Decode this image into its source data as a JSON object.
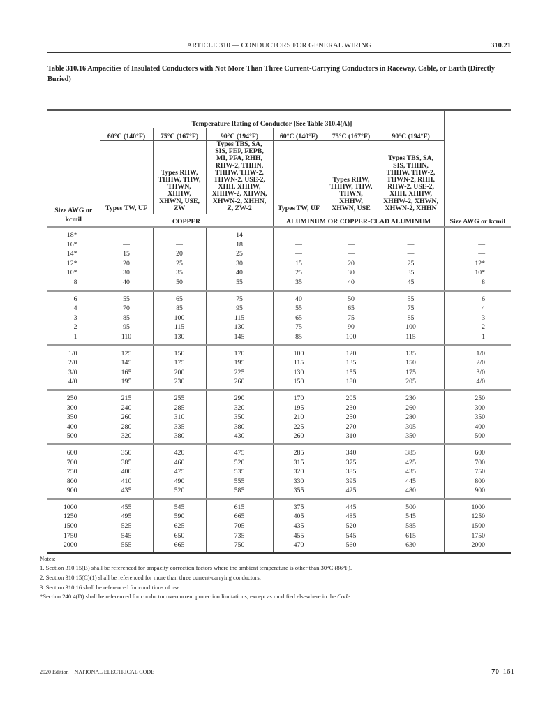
{
  "header": {
    "article": "ARTICLE 310 — CONDUCTORS FOR GENERAL WIRING",
    "section": "310.21"
  },
  "table_title": "Table 310.16  Ampacities of Insulated Conductors with Not More Than Three Current-Carrying Conductors in Raceway, Cable, or Earth (Directly Buried)",
  "table": {
    "temp_rating_header": "Temperature Rating of Conductor [See Table 310.4(A)]",
    "temps": [
      "60°C (140°F)",
      "75°C (167°F)",
      "90°C (194°F)",
      "60°C (140°F)",
      "75°C (167°F)",
      "90°C (194°F)"
    ],
    "types": [
      "Types TW, UF",
      "Types RHW,\nTHHW, THW,\nTHWN,\nXHHW,\nXHWN, USE,\nZW",
      "Types TBS, SA,\nSIS, FEP, FEPB,\nMI, PFA, RHH,\nRHW-2, THHN,\nTHHW, THW-2,\nTHWN-2, USE-2,\nXHH, XHHW,\nXHHW-2, XHWN,\nXHWN-2, XHHN,\nZ, ZW-2",
      "Types TW, UF",
      "Types RHW,\nTHHW, THW,\nTHWN,\nXHHW,\nXHWN, USE",
      "Types TBS, SA,\nSIS, THHN,\nTHHW, THW-2,\nTHWN-2, RHH,\nRHW-2, USE-2,\nXHH, XHHW,\nXHHW-2, XHWN,\nXHWN-2, XHHN"
    ],
    "size_header_left": "Size AWG or kcmil",
    "copper": "COPPER",
    "aluminum": "ALUMINUM OR COPPER-CLAD ALUMINUM",
    "size_header_right": "Size AWG or kcmil",
    "groups": [
      [
        {
          "size": "18*",
          "values": [
            "—",
            "—",
            "14",
            "—",
            "—",
            "—"
          ],
          "size_right": "—"
        },
        {
          "size": "16*",
          "values": [
            "—",
            "—",
            "18",
            "—",
            "—",
            "—"
          ],
          "size_right": "—"
        },
        {
          "size": "14*",
          "values": [
            "15",
            "20",
            "25",
            "—",
            "—",
            "—"
          ],
          "size_right": "—"
        },
        {
          "size": "12*",
          "values": [
            "20",
            "25",
            "30",
            "15",
            "20",
            "25"
          ],
          "size_right": "12*"
        },
        {
          "size": "10*",
          "values": [
            "30",
            "35",
            "40",
            "25",
            "30",
            "35"
          ],
          "size_right": "10*"
        },
        {
          "size": "8",
          "values": [
            "40",
            "50",
            "55",
            "35",
            "40",
            "45"
          ],
          "size_right": "8"
        }
      ],
      [
        {
          "size": "6",
          "values": [
            "55",
            "65",
            "75",
            "40",
            "50",
            "55"
          ],
          "size_right": "6"
        },
        {
          "size": "4",
          "values": [
            "70",
            "85",
            "95",
            "55",
            "65",
            "75"
          ],
          "size_right": "4"
        },
        {
          "size": "3",
          "values": [
            "85",
            "100",
            "115",
            "65",
            "75",
            "85"
          ],
          "size_right": "3"
        },
        {
          "size": "2",
          "values": [
            "95",
            "115",
            "130",
            "75",
            "90",
            "100"
          ],
          "size_right": "2"
        },
        {
          "size": "1",
          "values": [
            "110",
            "130",
            "145",
            "85",
            "100",
            "115"
          ],
          "size_right": "1"
        }
      ],
      [
        {
          "size": "1/0",
          "values": [
            "125",
            "150",
            "170",
            "100",
            "120",
            "135"
          ],
          "size_right": "1/0"
        },
        {
          "size": "2/0",
          "values": [
            "145",
            "175",
            "195",
            "115",
            "135",
            "150"
          ],
          "size_right": "2/0"
        },
        {
          "size": "3/0",
          "values": [
            "165",
            "200",
            "225",
            "130",
            "155",
            "175"
          ],
          "size_right": "3/0"
        },
        {
          "size": "4/0",
          "values": [
            "195",
            "230",
            "260",
            "150",
            "180",
            "205"
          ],
          "size_right": "4/0"
        }
      ],
      [
        {
          "size": "250",
          "values": [
            "215",
            "255",
            "290",
            "170",
            "205",
            "230"
          ],
          "size_right": "250"
        },
        {
          "size": "300",
          "values": [
            "240",
            "285",
            "320",
            "195",
            "230",
            "260"
          ],
          "size_right": "300"
        },
        {
          "size": "350",
          "values": [
            "260",
            "310",
            "350",
            "210",
            "250",
            "280"
          ],
          "size_right": "350"
        },
        {
          "size": "400",
          "values": [
            "280",
            "335",
            "380",
            "225",
            "270",
            "305"
          ],
          "size_right": "400"
        },
        {
          "size": "500",
          "values": [
            "320",
            "380",
            "430",
            "260",
            "310",
            "350"
          ],
          "size_right": "500"
        }
      ],
      [
        {
          "size": "600",
          "values": [
            "350",
            "420",
            "475",
            "285",
            "340",
            "385"
          ],
          "size_right": "600"
        },
        {
          "size": "700",
          "values": [
            "385",
            "460",
            "520",
            "315",
            "375",
            "425"
          ],
          "size_right": "700"
        },
        {
          "size": "750",
          "values": [
            "400",
            "475",
            "535",
            "320",
            "385",
            "435"
          ],
          "size_right": "750"
        },
        {
          "size": "800",
          "values": [
            "410",
            "490",
            "555",
            "330",
            "395",
            "445"
          ],
          "size_right": "800"
        },
        {
          "size": "900",
          "values": [
            "435",
            "520",
            "585",
            "355",
            "425",
            "480"
          ],
          "size_right": "900"
        }
      ],
      [
        {
          "size": "1000",
          "values": [
            "455",
            "545",
            "615",
            "375",
            "445",
            "500"
          ],
          "size_right": "1000"
        },
        {
          "size": "1250",
          "values": [
            "495",
            "590",
            "665",
            "405",
            "485",
            "545"
          ],
          "size_right": "1250"
        },
        {
          "size": "1500",
          "values": [
            "525",
            "625",
            "705",
            "435",
            "520",
            "585"
          ],
          "size_right": "1500"
        },
        {
          "size": "1750",
          "values": [
            "545",
            "650",
            "735",
            "455",
            "545",
            "615"
          ],
          "size_right": "1750"
        },
        {
          "size": "2000",
          "values": [
            "555",
            "665",
            "750",
            "470",
            "560",
            "630"
          ],
          "size_right": "2000"
        }
      ]
    ]
  },
  "notes": {
    "label": "Notes:",
    "items": [
      "1. Section 310.15(B) shall be referenced for ampacity correction factors where the ambient temperature is other than 30°C (86°F).",
      "2. Section 310.15(C)(1) shall be referenced for more than three current-carrying conductors.",
      "3. Section 310.16 shall be referenced for conditions of use."
    ],
    "footnote": "*Section 240.4(D) shall be referenced for conductor overcurrent protection limitations, except as modified elsewhere in the ",
    "footnote_italic": "Code",
    "footnote_end": "."
  },
  "footer": {
    "edition": "2020 Edition    NATIONAL ELECTRICAL CODE",
    "page_prefix": "70",
    "page_suffix": "–161"
  }
}
